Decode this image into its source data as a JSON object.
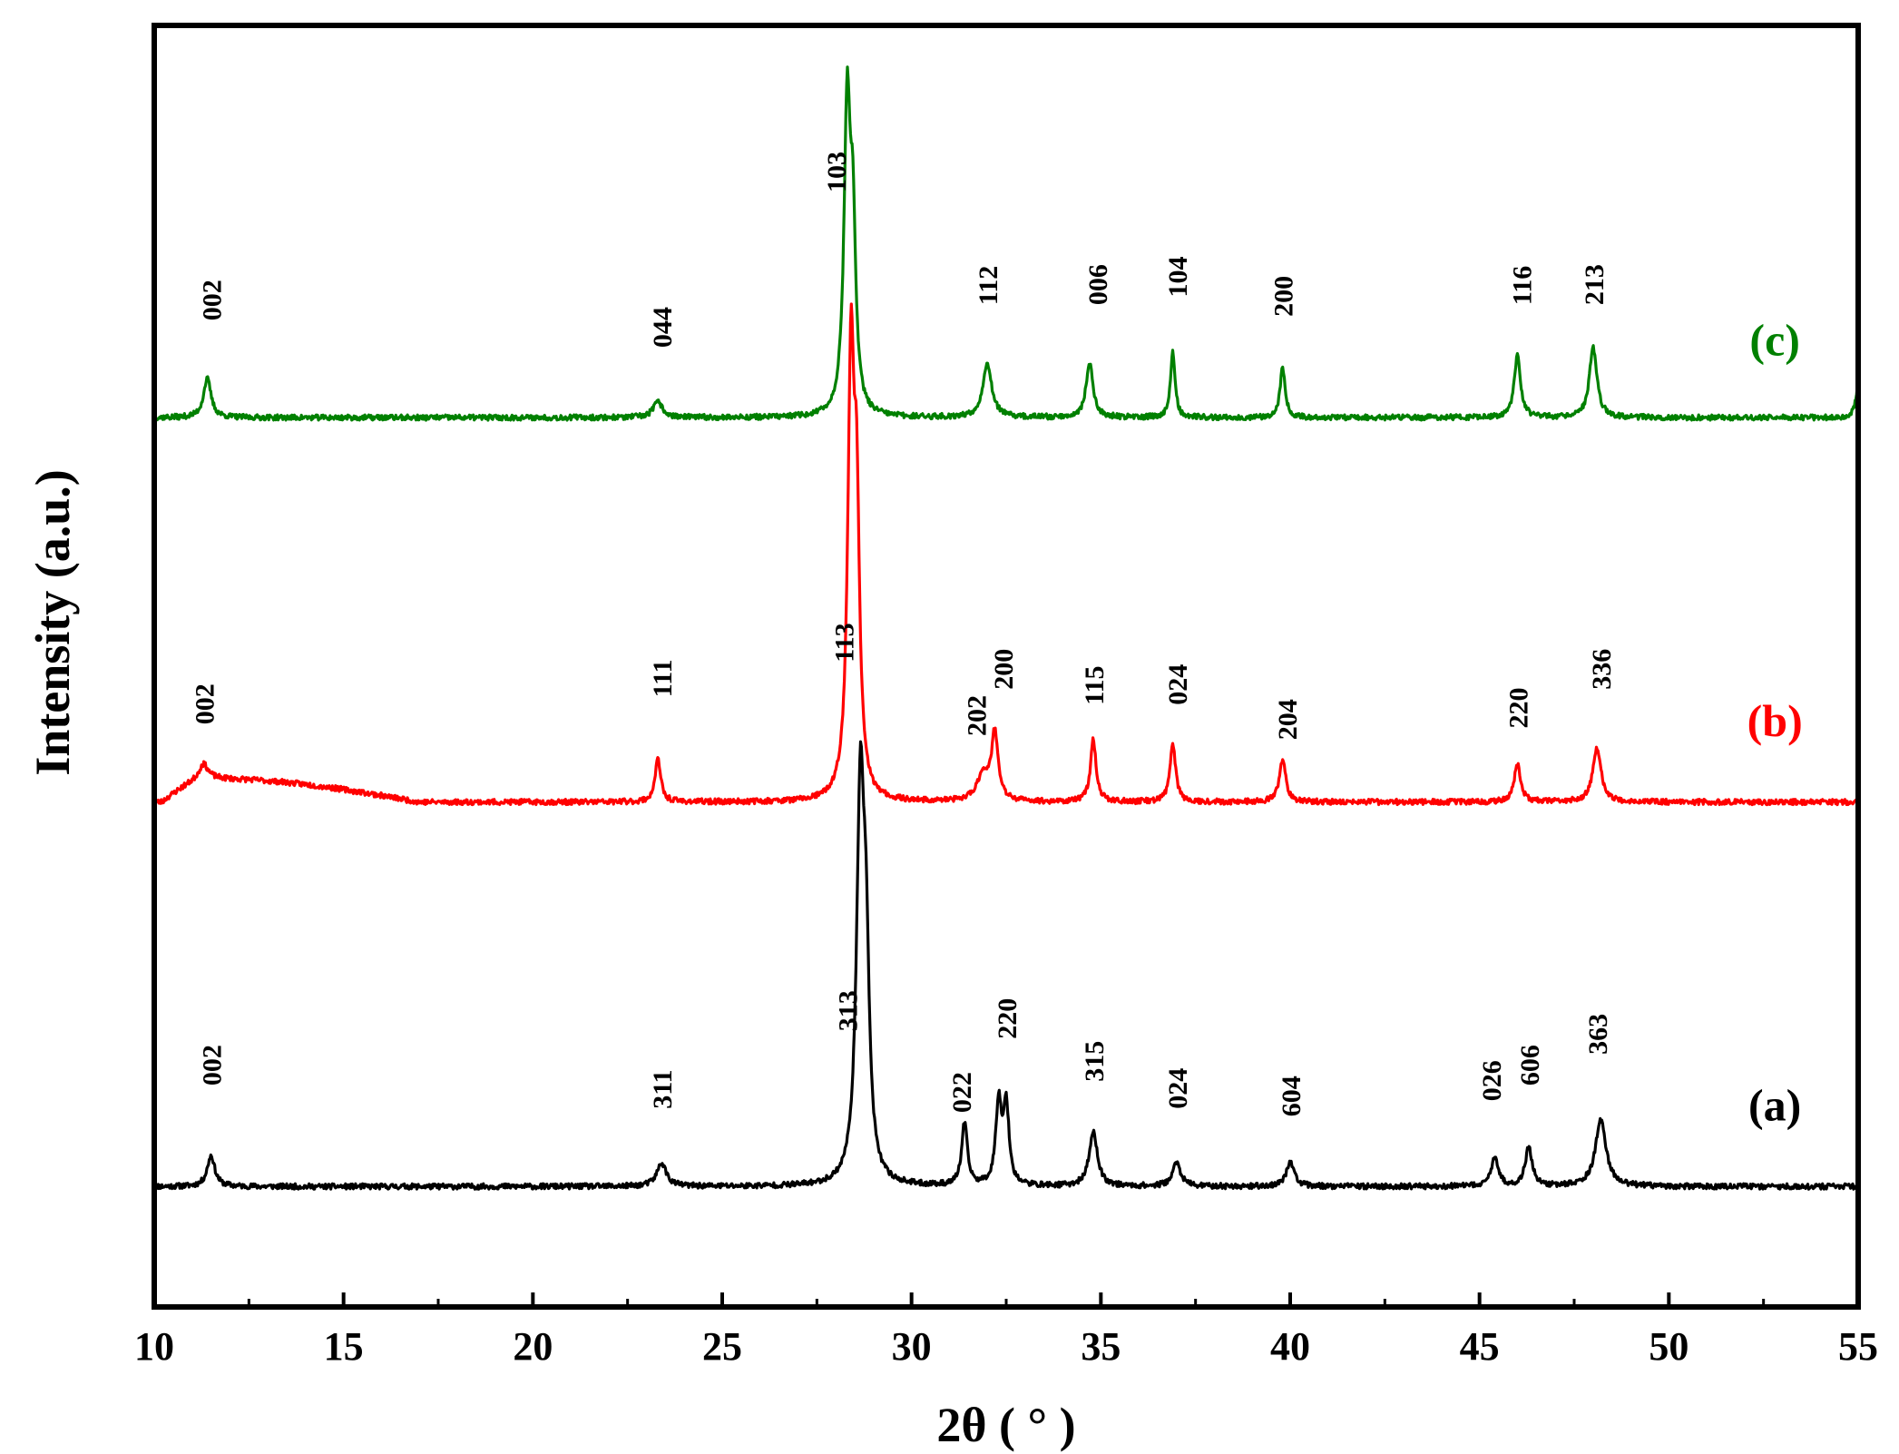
{
  "chart_data": {
    "type": "line",
    "xlabel": "2θ ( ° )",
    "ylabel": "Intensity (a.u.)",
    "xlim": [
      10,
      55
    ],
    "xticks": [
      "10",
      "15",
      "20",
      "25",
      "30",
      "35",
      "40",
      "45",
      "50",
      "55"
    ],
    "yticks": [],
    "grid": false,
    "series": [
      {
        "name": "(a)",
        "color": "#000000",
        "baseline": 0,
        "noise_seed": 11,
        "peaks": [
          {
            "x": 11.5,
            "height": 80,
            "width": 0.12
          },
          {
            "x": 23.4,
            "height": 60,
            "width": 0.15
          },
          {
            "x": 28.65,
            "height": 1000,
            "width": 0.12
          },
          {
            "x": 28.8,
            "height": 460,
            "width": 0.1
          },
          {
            "x": 31.4,
            "height": 160,
            "width": 0.09
          },
          {
            "x": 32.3,
            "height": 210,
            "width": 0.09
          },
          {
            "x": 32.5,
            "height": 200,
            "width": 0.09
          },
          {
            "x": 34.8,
            "height": 140,
            "width": 0.13
          },
          {
            "x": 37.0,
            "height": 60,
            "width": 0.13
          },
          {
            "x": 40.0,
            "height": 65,
            "width": 0.12
          },
          {
            "x": 45.4,
            "height": 70,
            "width": 0.12
          },
          {
            "x": 46.3,
            "height": 100,
            "width": 0.11
          },
          {
            "x": 48.2,
            "height": 170,
            "width": 0.17
          }
        ],
        "peak_labels": [
          {
            "label": "002",
            "x": 11.5,
            "y": 260
          },
          {
            "label": "311",
            "x": 23.4,
            "y": 200
          },
          {
            "label": "313",
            "x": 28.3,
            "y": 400
          },
          {
            "label": "022",
            "x": 31.3,
            "y": 190
          },
          {
            "label": "220",
            "x": 32.5,
            "y": 380
          },
          {
            "label": "315",
            "x": 34.8,
            "y": 270
          },
          {
            "label": "024",
            "x": 37.0,
            "y": 200
          },
          {
            "label": "604",
            "x": 40.0,
            "y": 180
          },
          {
            "label": "026",
            "x": 45.3,
            "y": 220
          },
          {
            "label": "606",
            "x": 46.3,
            "y": 260
          },
          {
            "label": "363",
            "x": 48.1,
            "y": 340
          }
        ],
        "series_label": {
          "text": "(a)",
          "x": 52.8,
          "y": 170
        }
      },
      {
        "name": "(b)",
        "color": "#ff0000",
        "baseline": 990,
        "noise_seed": 23,
        "hump": {
          "x_start": 10.2,
          "x_peak": 11.5,
          "x_end": 17.0,
          "height": 60
        },
        "peaks": [
          {
            "x": 11.3,
            "height": 40,
            "width": 0.15
          },
          {
            "x": 23.3,
            "height": 110,
            "width": 0.09
          },
          {
            "x": 28.4,
            "height": 1100,
            "width": 0.1
          },
          {
            "x": 28.55,
            "height": 650,
            "width": 0.09
          },
          {
            "x": 31.9,
            "height": 70,
            "width": 0.2
          },
          {
            "x": 32.2,
            "height": 170,
            "width": 0.1
          },
          {
            "x": 34.8,
            "height": 160,
            "width": 0.09
          },
          {
            "x": 36.9,
            "height": 150,
            "width": 0.09
          },
          {
            "x": 39.8,
            "height": 110,
            "width": 0.1
          },
          {
            "x": 46.0,
            "height": 100,
            "width": 0.1
          },
          {
            "x": 48.1,
            "height": 140,
            "width": 0.13
          }
        ],
        "peak_labels": [
          {
            "label": "002",
            "x": 11.3,
            "y": 200
          },
          {
            "label": "111",
            "x": 23.4,
            "y": 270
          },
          {
            "label": "113",
            "x": 28.2,
            "y": 360
          },
          {
            "label": "202",
            "x": 31.7,
            "y": 170
          },
          {
            "label": "200",
            "x": 32.4,
            "y": 290
          },
          {
            "label": "115",
            "x": 34.8,
            "y": 250
          },
          {
            "label": "024",
            "x": 37.0,
            "y": 250
          },
          {
            "label": "204",
            "x": 39.9,
            "y": 160
          },
          {
            "label": "220",
            "x": 46.0,
            "y": 190
          },
          {
            "label": "336",
            "x": 48.2,
            "y": 290
          }
        ],
        "series_label": {
          "text": "(b)",
          "x": 52.8,
          "y": 170
        }
      },
      {
        "name": "(c)",
        "color": "#008000",
        "baseline": 1980,
        "noise_seed": 37,
        "peaks": [
          {
            "x": 11.4,
            "height": 100,
            "width": 0.12
          },
          {
            "x": 23.3,
            "height": 40,
            "width": 0.15
          },
          {
            "x": 28.3,
            "height": 780,
            "width": 0.1
          },
          {
            "x": 28.45,
            "height": 430,
            "width": 0.09
          },
          {
            "x": 32.0,
            "height": 140,
            "width": 0.14
          },
          {
            "x": 34.7,
            "height": 140,
            "width": 0.11
          },
          {
            "x": 36.9,
            "height": 170,
            "width": 0.07
          },
          {
            "x": 39.8,
            "height": 130,
            "width": 0.08
          },
          {
            "x": 46.0,
            "height": 160,
            "width": 0.1
          },
          {
            "x": 48.0,
            "height": 180,
            "width": 0.12
          },
          {
            "x": 55.0,
            "height": 80,
            "width": 0.08
          }
        ],
        "peak_labels": [
          {
            "label": "002",
            "x": 11.5,
            "y": 250
          },
          {
            "label": "044",
            "x": 23.4,
            "y": 180
          },
          {
            "label": "103",
            "x": 28.0,
            "y": 580
          },
          {
            "label": "112",
            "x": 32.0,
            "y": 290
          },
          {
            "label": "006",
            "x": 34.9,
            "y": 290
          },
          {
            "label": "104",
            "x": 37.0,
            "y": 310
          },
          {
            "label": "200",
            "x": 39.8,
            "y": 260
          },
          {
            "label": "116",
            "x": 46.1,
            "y": 290
          },
          {
            "label": "213",
            "x": 48.0,
            "y": 290
          }
        ],
        "series_label": {
          "text": "(c)",
          "x": 52.8,
          "y": 160
        }
      }
    ],
    "ylim": [
      -310,
      2990
    ]
  }
}
